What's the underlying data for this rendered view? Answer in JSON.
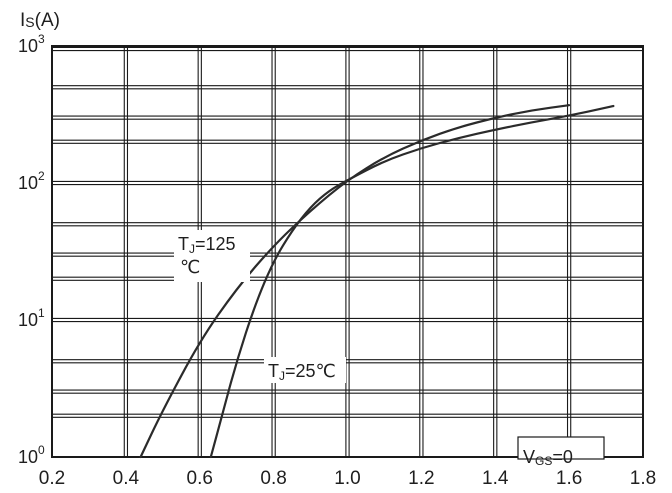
{
  "chart_data": {
    "type": "line",
    "title": "",
    "xlabel": "",
    "ylabel_prefix": "I",
    "ylabel_sub": "S",
    "ylabel_suffix": "(A)",
    "x_scale": "linear",
    "y_scale": "log",
    "xlim": [
      0.2,
      1.8
    ],
    "ylim": [
      1,
      1000
    ],
    "x_ticks": [
      0.2,
      0.4,
      0.6,
      0.8,
      1.0,
      1.2,
      1.4,
      1.6,
      1.8
    ],
    "x_tick_labels": [
      "0.2",
      "0.4",
      "0.6",
      "0.8",
      "1.0",
      "1.2",
      "1.4",
      "1.6",
      "1.8"
    ],
    "y_ticks": [
      1,
      10,
      100,
      1000
    ],
    "y_tick_bases": [
      "10",
      "10",
      "10",
      "10"
    ],
    "y_tick_exponents": [
      "0",
      "1",
      "2",
      "3"
    ],
    "grid": true,
    "line_color": "#2b2b2b",
    "grid_color": "#1a1a1a",
    "series": [
      {
        "label_main": "T",
        "label_sub": "J",
        "label_value": "=125",
        "label_unit": "℃",
        "points": [
          [
            0.44,
            1.0
          ],
          [
            0.5,
            2.2
          ],
          [
            0.6,
            7.0
          ],
          [
            0.7,
            17
          ],
          [
            0.8,
            35
          ],
          [
            0.9,
            63
          ],
          [
            1.0,
            105
          ],
          [
            1.1,
            155
          ],
          [
            1.2,
            205
          ],
          [
            1.3,
            255
          ],
          [
            1.4,
            300
          ],
          [
            1.5,
            340
          ],
          [
            1.6,
            370
          ]
        ]
      },
      {
        "label_main": "T",
        "label_sub": "J",
        "label_value": "=25",
        "label_unit": "℃",
        "points": [
          [
            0.63,
            1.0
          ],
          [
            0.66,
            2.0
          ],
          [
            0.7,
            5.0
          ],
          [
            0.75,
            13
          ],
          [
            0.8,
            27
          ],
          [
            0.85,
            45
          ],
          [
            0.9,
            67
          ],
          [
            0.95,
            88
          ],
          [
            1.0,
            105
          ],
          [
            1.1,
            145
          ],
          [
            1.2,
            180
          ],
          [
            1.3,
            213
          ],
          [
            1.4,
            245
          ],
          [
            1.5,
            278
          ],
          [
            1.6,
            310
          ],
          [
            1.7,
            355
          ],
          [
            1.72,
            365
          ]
        ]
      }
    ],
    "annotation": {
      "main": "V",
      "sub": "GS",
      "value": "=0"
    }
  }
}
